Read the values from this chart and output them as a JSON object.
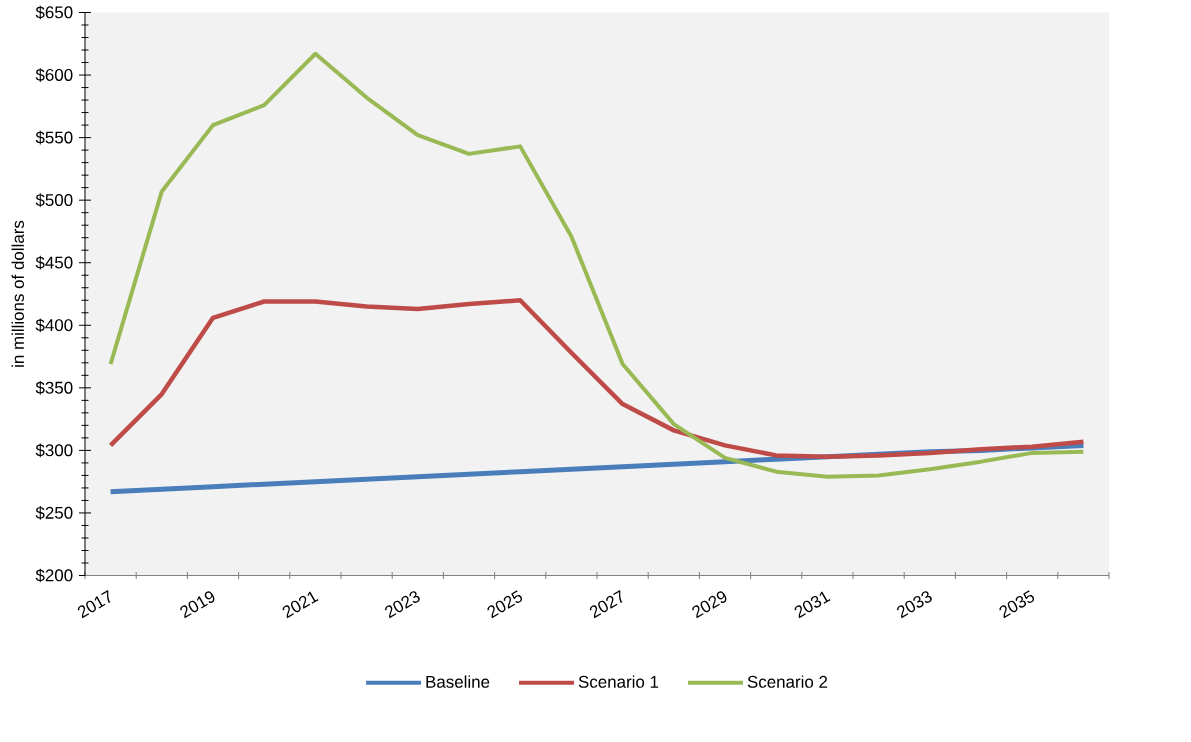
{
  "chart_data": {
    "type": "line",
    "ylabel": "in millions of dollars",
    "categories": [
      "2017",
      null,
      "2019",
      null,
      "2021",
      null,
      "2023",
      null,
      "2025",
      null,
      "2027",
      null,
      "2029",
      null,
      "2031",
      null,
      "2033",
      null,
      "2035",
      null
    ],
    "series": [
      {
        "name": "Baseline",
        "color": "#4a7ebb",
        "values": [
          267,
          269,
          271,
          273,
          275,
          277,
          279,
          281,
          283,
          285,
          287,
          289,
          291,
          293,
          295,
          297,
          299,
          300,
          302,
          304
        ]
      },
      {
        "name": "Scenario 1",
        "color": "#be4b48",
        "values": [
          304,
          345,
          406,
          419,
          419,
          415,
          413,
          417,
          420,
          378,
          337,
          316,
          304,
          296,
          295,
          296,
          298,
          301,
          303,
          307
        ]
      },
      {
        "name": "Scenario 2",
        "color": "#98b954",
        "values": [
          369,
          507,
          560,
          576,
          617,
          582,
          552,
          537,
          543,
          471,
          369,
          321,
          294,
          283,
          279,
          280,
          285,
          291,
          298,
          299
        ]
      }
    ],
    "ylim": [
      200,
      650
    ],
    "yticks": [
      {
        "value": 200,
        "label": "$200"
      },
      {
        "value": 250,
        "label": "$250"
      },
      {
        "value": 300,
        "label": "$300"
      },
      {
        "value": 350,
        "label": "$350"
      },
      {
        "value": 400,
        "label": "$400"
      },
      {
        "value": 450,
        "label": "$450"
      },
      {
        "value": 500,
        "label": "$500"
      },
      {
        "value": 550,
        "label": "$550"
      },
      {
        "value": 600,
        "label": "$600"
      },
      {
        "value": 650,
        "label": "$650"
      }
    ],
    "grid": false,
    "legend": "bottom",
    "marker": "none",
    "line_style": "solid"
  }
}
